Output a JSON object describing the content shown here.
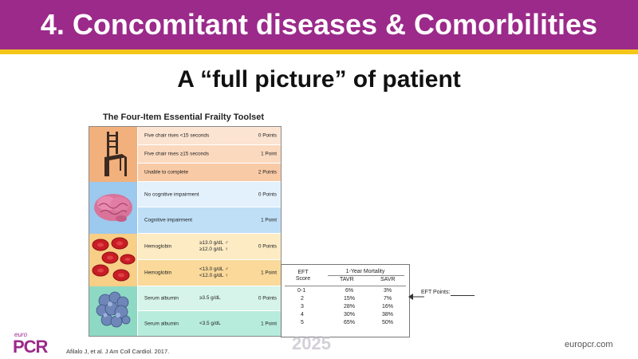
{
  "slide": {
    "title": "4. Concomitant diseases & Comorbilities",
    "subtitle": "A “full picture” of patient"
  },
  "eft": {
    "title": "The Four-Item Essential Frailty Toolset",
    "groups": [
      {
        "icon": "chair-icon",
        "color": "#f2b07c",
        "rows": [
          {
            "label": "Five chair rises <15 seconds",
            "threshold": "",
            "points": "0 Points",
            "color": "#fbe4d2"
          },
          {
            "label": "Five chair rises ≥15 seconds",
            "threshold": "",
            "points": "1 Point",
            "color": "#fbd9bf"
          },
          {
            "label": "Unable to complete",
            "threshold": "",
            "points": "2 Points",
            "color": "#f8caa6"
          }
        ]
      },
      {
        "icon": "brain-icon",
        "color": "#9cc9ee",
        "rows": [
          {
            "label": "No cognitive impairment",
            "threshold": "",
            "points": "0 Points",
            "color": "#e3f1fc"
          },
          {
            "label": "Cognitive impairment",
            "threshold": "",
            "points": "1 Point",
            "color": "#bfdff7"
          }
        ]
      },
      {
        "icon": "red-blood-cells-icon",
        "color": "#f7cf86",
        "rows": [
          {
            "label": "Hemoglobin",
            "threshold": "≥13.0 g/dL ♂\n≥12.0 g/dL ♀",
            "points": "0 Points",
            "color": "#fdebc4"
          },
          {
            "label": "Hemoglobin",
            "threshold": "<13.0 g/dL ♂\n<12.0 g/dL ♀",
            "points": "1 Point",
            "color": "#fad99a"
          }
        ]
      },
      {
        "icon": "albumin-protein-icon",
        "color": "#8ed9c4",
        "rows": [
          {
            "label": "Serum albumin",
            "threshold": "≥3.5 g/dL",
            "points": "0 Points",
            "color": "#d6f4ea"
          },
          {
            "label": "Serum albumin",
            "threshold": "<3.5 g/dL",
            "points": "1 Point",
            "color": "#b7ecdc"
          }
        ]
      }
    ]
  },
  "mortality": {
    "col_eft": "EFT\nScore",
    "col_group": "1-Year Mortality",
    "col_tavr": "TAVR",
    "col_savr": "SAVR",
    "rows": [
      {
        "score": "0-1",
        "tavr": "6%",
        "savr": "3%"
      },
      {
        "score": "2",
        "tavr": "15%",
        "savr": "7%"
      },
      {
        "score": "3",
        "tavr": "28%",
        "savr": "16%"
      },
      {
        "score": "4",
        "tavr": "30%",
        "savr": "38%"
      },
      {
        "score": "5",
        "tavr": "65%",
        "savr": "50%"
      }
    ]
  },
  "eft_points_label": "EFT Points:",
  "footer": {
    "logo_small": "euro",
    "logo_big": "PCR",
    "citation": "Afilalo J, et al. J Am Coll Cardiol. 2017.",
    "year": "2025",
    "website": "europcr.com"
  },
  "colors": {
    "brand": "#9b2a8a",
    "accent": "#f5c518"
  }
}
